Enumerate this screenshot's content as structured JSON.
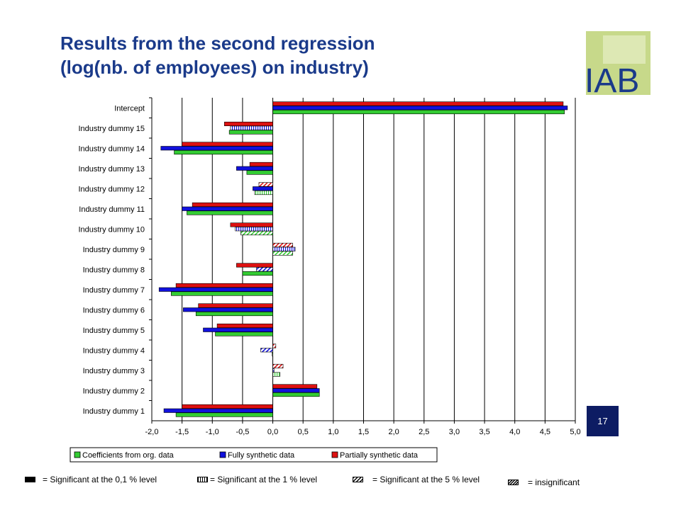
{
  "header": {
    "title_line1": "Results from the second regression",
    "title_line2": "(log(nb. of employees) on industry)",
    "logo_text": "IAB",
    "page_number": "17"
  },
  "colors": {
    "title": "#1a3a8a",
    "green": "#33cc33",
    "blue": "#1111dd",
    "red": "#dd1111",
    "page_box": "#0d1c63"
  },
  "significance_legend": [
    {
      "pattern": "solid",
      "label": "= Significant at the 0,1 % level"
    },
    {
      "pattern": "vertical",
      "label": "= Significant at the 1 % level"
    },
    {
      "pattern": "diagonal",
      "label": "= Significant at the 5 % level"
    },
    {
      "pattern": "dense-diagonal",
      "label": "= insignificant"
    }
  ],
  "chart_data": {
    "type": "bar",
    "orientation": "horizontal",
    "categories": [
      "Intercept",
      "Industry dummy 15",
      "Industry dummy 14",
      "Industry dummy 13",
      "Industry dummy 12",
      "Industry dummy 11",
      "Industry dummy 10",
      "Industry dummy 9",
      "Industry dummy 8",
      "Industry dummy 7",
      "Industry dummy 6",
      "Industry dummy 5",
      "Industry dummy 4",
      "Industry dummy 3",
      "Industry dummy 2",
      "Industry dummy 1"
    ],
    "xlim": [
      -2.0,
      5.0
    ],
    "xticks": [
      "-2,0",
      "-1,5",
      "-1,0",
      "-0,5",
      "0,0",
      "0,5",
      "1,0",
      "1,5",
      "2,0",
      "2,5",
      "3,0",
      "3,5",
      "4,0",
      "4,5",
      "5,0"
    ],
    "grid": "vertical",
    "legend_position": "bottom",
    "series": [
      {
        "name": "Coefficients from org. data",
        "color": "#33cc33",
        "values": [
          4.82,
          -0.72,
          -1.63,
          -0.43,
          -0.3,
          -1.42,
          -0.53,
          0.33,
          -0.5,
          -1.68,
          -1.27,
          -0.95,
          -0.01,
          0.12,
          0.77,
          -1.6
        ],
        "patterns": [
          "solid",
          "solid",
          "solid",
          "solid",
          "vertical",
          "solid",
          "diagonal",
          "diagonal",
          "solid",
          "solid",
          "solid",
          "solid",
          "diagonal",
          "vertical",
          "solid",
          "solid"
        ]
      },
      {
        "name": "Fully synthetic data",
        "color": "#1111dd",
        "values": [
          4.87,
          -0.7,
          -1.85,
          -0.6,
          -0.33,
          -1.5,
          -0.62,
          0.37,
          -0.27,
          -1.88,
          -1.48,
          -1.15,
          -0.2,
          0.02,
          0.77,
          -1.8
        ],
        "patterns": [
          "solid",
          "vertical",
          "solid",
          "solid",
          "solid",
          "solid",
          "vertical",
          "vertical",
          "diagonal",
          "solid",
          "solid",
          "solid",
          "diagonal",
          "dense-diagonal",
          "solid",
          "solid"
        ]
      },
      {
        "name": "Partially synthetic data",
        "color": "#dd1111",
        "values": [
          4.8,
          -0.8,
          -1.5,
          -0.38,
          -0.23,
          -1.33,
          -0.7,
          0.33,
          -0.6,
          -1.6,
          -1.23,
          -0.92,
          0.05,
          0.17,
          0.73,
          -1.5
        ],
        "patterns": [
          "solid",
          "solid",
          "solid",
          "solid",
          "diagonal",
          "solid",
          "solid",
          "diagonal",
          "solid",
          "solid",
          "solid",
          "solid",
          "diagonal",
          "diagonal",
          "solid",
          "solid"
        ]
      }
    ]
  }
}
